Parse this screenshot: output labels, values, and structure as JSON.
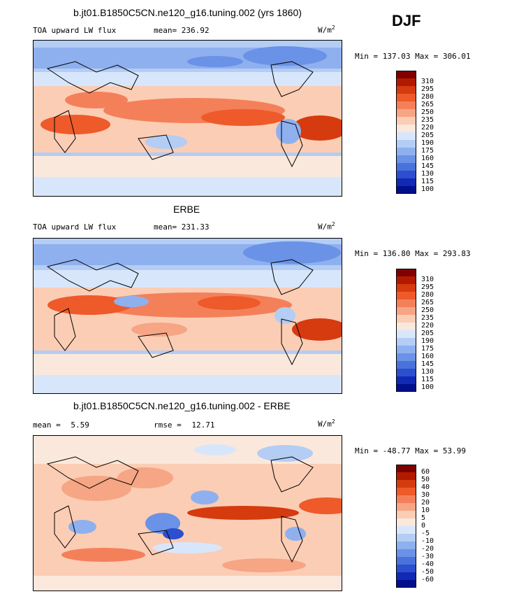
{
  "season": "DJF",
  "panels": [
    {
      "title": "b.jt01.B1850C5CN.ne120_g16.tuning.002 (yrs 1860)",
      "variable": "TOA upward LW flux",
      "mean_label": "mean=",
      "mean_value": "236.92",
      "units": "W/m",
      "units_exp": "2",
      "min_max": "Min = 137.03 Max = 306.01",
      "levels": [
        "310",
        "295",
        "280",
        "265",
        "250",
        "235",
        "220",
        "205",
        "190",
        "175",
        "160",
        "145",
        "130",
        "115",
        "100"
      ]
    },
    {
      "title": "ERBE",
      "variable": "TOA upward LW flux",
      "mean_label": "mean=",
      "mean_value": "231.33",
      "units": "W/m",
      "units_exp": "2",
      "min_max": "Min = 136.80 Max = 293.83",
      "levels": [
        "310",
        "295",
        "280",
        "265",
        "250",
        "235",
        "220",
        "205",
        "190",
        "175",
        "160",
        "145",
        "130",
        "115",
        "100"
      ]
    },
    {
      "title": "b.jt01.B1850C5CN.ne120_g16.tuning.002 - ERBE",
      "mean_label": "mean =",
      "mean_value": "5.59",
      "rmse_label": "rmse =",
      "rmse_value": "12.71",
      "units": "W/m",
      "units_exp": "2",
      "min_max": "Min = -48.77 Max =  53.99",
      "levels": [
        "60",
        "50",
        "40",
        "30",
        "20",
        "10",
        "5",
        "0",
        "-5",
        "-10",
        "-20",
        "-30",
        "-40",
        "-50",
        "-60"
      ]
    }
  ],
  "colors": {
    "palette": [
      "#7f0000",
      "#b21a00",
      "#d63a0f",
      "#ee5a2a",
      "#f4805a",
      "#f6a585",
      "#fbcdb4",
      "#fbe8dc",
      "#d8e6fb",
      "#b3cdf4",
      "#8fb0ef",
      "#6a92e6",
      "#4a72db",
      "#2b4fcf",
      "#1229b5",
      "#000f8a"
    ]
  }
}
